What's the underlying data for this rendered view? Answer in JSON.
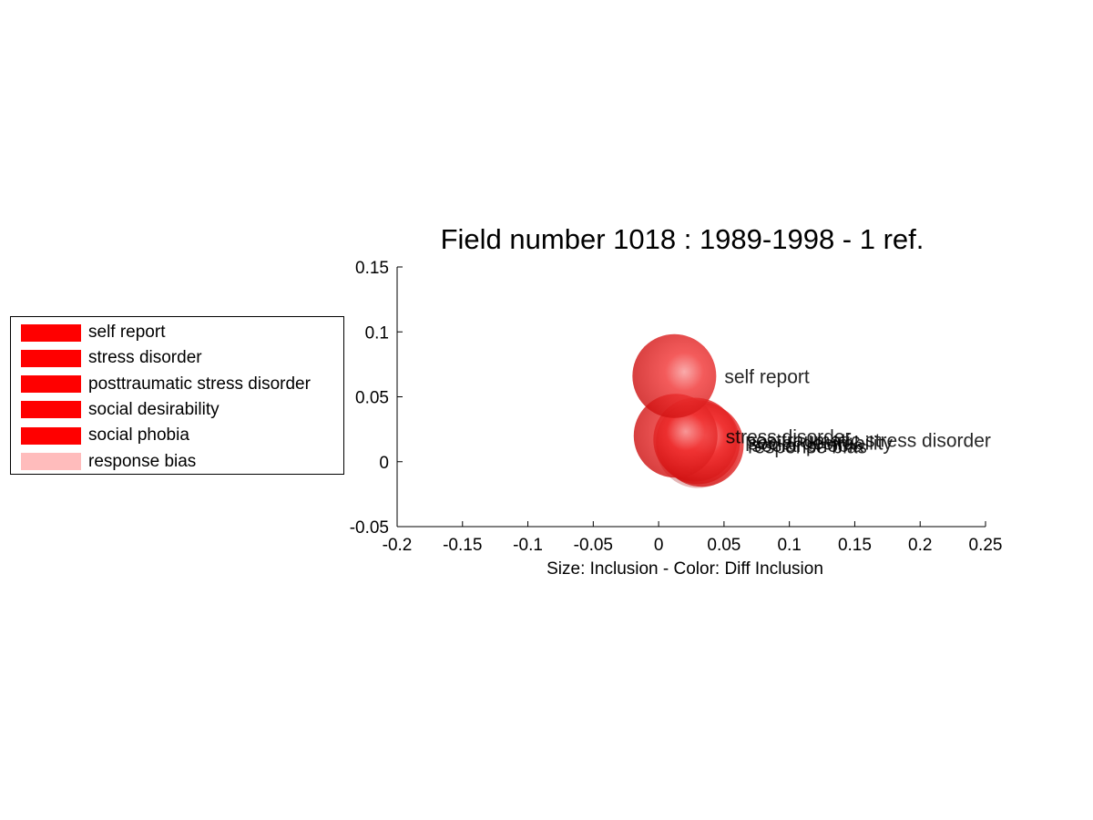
{
  "chart_data": {
    "type": "scatter",
    "title": "Field number 1018 : 1989-1998  - 1 ref.",
    "xlabel": "Size: Inclusion - Color: Diff Inclusion",
    "ylabel": "",
    "xlim": [
      -0.2,
      0.25
    ],
    "ylim": [
      -0.05,
      0.15
    ],
    "xticks": [
      "-0.2",
      "-0.15",
      "-0.1",
      "-0.05",
      "0",
      "0.05",
      "0.1",
      "0.15",
      "0.2",
      "0.25"
    ],
    "yticks": [
      "-0.05",
      "0",
      "0.05",
      "0.1",
      "0.15"
    ],
    "grid": false,
    "legend_position": "left",
    "points": [
      {
        "label": "response bias",
        "x": 0.03,
        "y": 0.012,
        "color": "#ffbcbc"
      },
      {
        "label": "social phobia",
        "x": 0.033,
        "y": 0.013,
        "color": "#ee1111"
      },
      {
        "label": "social desirability",
        "x": 0.03,
        "y": 0.015,
        "color": "#ee1111"
      },
      {
        "label": "posttraumatic stress disorder",
        "x": 0.028,
        "y": 0.017,
        "color": "#ee1111"
      },
      {
        "label": "stress disorder",
        "x": 0.013,
        "y": 0.02,
        "color": "#ee1111"
      },
      {
        "label": "self report",
        "x": 0.012,
        "y": 0.066,
        "color": "#ee1111"
      }
    ],
    "legend": [
      {
        "label": "self report",
        "color": "#ff0000"
      },
      {
        "label": "stress disorder",
        "color": "#ff0000"
      },
      {
        "label": "posttraumatic stress disorder",
        "color": "#ff0000"
      },
      {
        "label": "social desirability",
        "color": "#ff0000"
      },
      {
        "label": "social phobia",
        "color": "#ff0000"
      },
      {
        "label": "response bias",
        "color": "#ffbcbc"
      }
    ]
  }
}
